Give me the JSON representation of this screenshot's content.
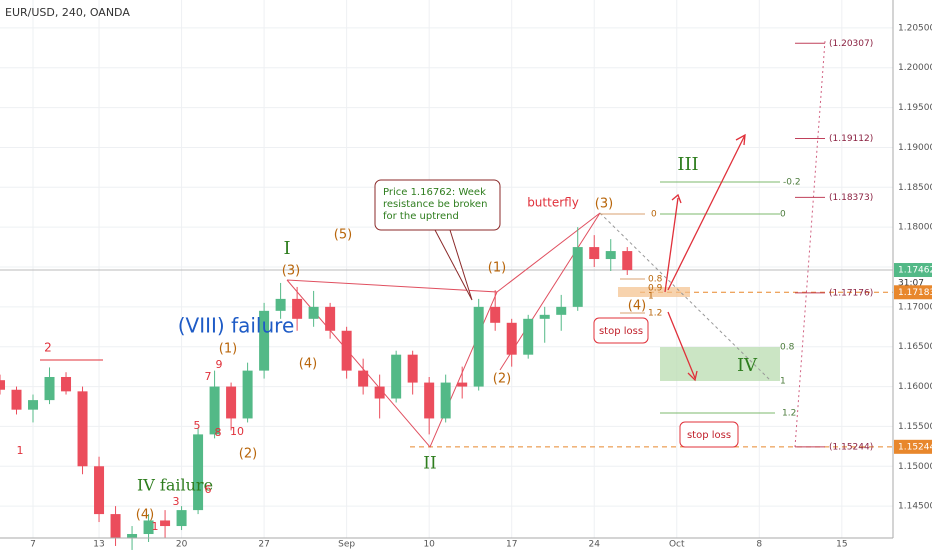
{
  "chart_data": {
    "type": "candlestick",
    "title": "EUR/USD, 240, OANDA",
    "x": [
      -2,
      -1,
      0,
      1,
      2,
      3,
      4,
      5,
      6,
      7,
      8,
      9,
      10,
      11,
      12,
      13,
      14,
      15,
      16,
      17,
      18,
      19,
      20,
      21,
      22,
      23,
      24,
      25,
      26,
      27,
      28,
      29,
      30,
      31,
      32,
      33,
      34,
      35,
      36
    ],
    "open": [
      1.1608,
      1.1596,
      1.1571,
      1.1583,
      1.1612,
      1.1594,
      1.15,
      1.144,
      1.141,
      1.1415,
      1.1432,
      1.1425,
      1.1445,
      1.154,
      1.16,
      1.156,
      1.162,
      1.1695,
      1.171,
      1.1685,
      1.17,
      1.167,
      1.162,
      1.16,
      1.1585,
      1.164,
      1.1605,
      1.156,
      1.1605,
      1.16,
      1.17,
      1.168,
      1.164,
      1.1685,
      1.169,
      1.17,
      1.1775,
      1.176,
      1.177
    ],
    "high": [
      1.1615,
      1.16,
      1.159,
      1.1624,
      1.1618,
      1.16,
      1.1512,
      1.145,
      1.1425,
      1.144,
      1.1445,
      1.145,
      1.1548,
      1.162,
      1.1605,
      1.163,
      1.1705,
      1.173,
      1.1725,
      1.172,
      1.1705,
      1.1675,
      1.1635,
      1.1615,
      1.1645,
      1.1645,
      1.1612,
      1.1615,
      1.1625,
      1.171,
      1.1721,
      1.1685,
      1.169,
      1.17,
      1.1715,
      1.18,
      1.179,
      1.1785,
      1.1775
    ],
    "low": [
      1.159,
      1.1565,
      1.1555,
      1.1578,
      1.159,
      1.149,
      1.143,
      1.14,
      1.1395,
      1.1405,
      1.141,
      1.142,
      1.144,
      1.1535,
      1.1545,
      1.1555,
      1.161,
      1.1685,
      1.167,
      1.1675,
      1.166,
      1.161,
      1.159,
      1.156,
      1.158,
      1.159,
      1.154,
      1.1555,
      1.1585,
      1.1595,
      1.167,
      1.1625,
      1.1635,
      1.1655,
      1.167,
      1.1695,
      1.175,
      1.1745,
      1.174
    ],
    "close": [
      1.1596,
      1.1571,
      1.1583,
      1.1612,
      1.1594,
      1.15,
      1.144,
      1.141,
      1.1415,
      1.1432,
      1.1425,
      1.1445,
      1.154,
      1.16,
      1.156,
      1.162,
      1.1695,
      1.171,
      1.1685,
      1.17,
      1.167,
      1.162,
      1.16,
      1.1585,
      1.164,
      1.1605,
      1.156,
      1.1605,
      1.16,
      1.17,
      1.168,
      1.164,
      1.1685,
      1.169,
      1.17,
      1.1775,
      1.176,
      1.177,
      1.17462
    ],
    "up_color": "#53b987",
    "down_color": "#eb4d5c",
    "xlim": [
      -2,
      52.1
    ],
    "ylim": [
      1.141,
      1.2085
    ],
    "xticks": [
      {
        "value": 0,
        "label": "7"
      },
      {
        "value": 4,
        "label": "13"
      },
      {
        "value": 9,
        "label": "20"
      },
      {
        "value": 14,
        "label": "27"
      },
      {
        "value": 19,
        "label": "Sep"
      },
      {
        "value": 24,
        "label": "10"
      },
      {
        "value": 29,
        "label": "17"
      },
      {
        "value": 34,
        "label": "24"
      },
      {
        "value": 39,
        "label": "Oct"
      },
      {
        "value": 44,
        "label": "8"
      },
      {
        "value": 49,
        "label": "15"
      }
    ],
    "yticks": [
      {
        "value": 1.145,
        "label": "1.14500"
      },
      {
        "value": 1.15,
        "label": "1.15000"
      },
      {
        "value": 1.155,
        "label": "1.15500"
      },
      {
        "value": 1.16,
        "label": "1.16000"
      },
      {
        "value": 1.165,
        "label": "1.16500"
      },
      {
        "value": 1.17,
        "label": "1.17000"
      },
      {
        "value": 1.175,
        "label": "1.17500"
      },
      {
        "value": 1.18,
        "label": "1.18000"
      },
      {
        "value": 1.185,
        "label": "1.18500"
      },
      {
        "value": 1.19,
        "label": "1.19000"
      },
      {
        "value": 1.195,
        "label": "1.19500"
      },
      {
        "value": 1.2,
        "label": "1.20000"
      },
      {
        "value": 1.205,
        "label": "1.20500"
      }
    ],
    "price_labels": [
      {
        "value": 1.17462,
        "label": "1.17462",
        "countdown": "31:07",
        "color": "#53b987"
      },
      {
        "value": 1.17183,
        "label": "1.17183",
        "color": "#e8872c"
      },
      {
        "value": 1.15244,
        "label": "1.15244",
        "color": "#e8872c"
      }
    ],
    "levels": [
      {
        "value": 1.20307,
        "label": "(1.20307)"
      },
      {
        "value": 1.19112,
        "label": "(1.19112)"
      },
      {
        "value": 1.18373,
        "label": "(1.18373)"
      },
      {
        "value": 1.17176,
        "label": "(1.17176)"
      },
      {
        "value": 1.15244,
        "label": "(1.15244)"
      }
    ],
    "waves": [
      {
        "text": "2",
        "color": "#e0303a"
      },
      {
        "text": "1",
        "color": "#e0303a"
      },
      {
        "text": "(4)",
        "color": "#b8650a"
      },
      {
        "text": "1",
        "color": "#e0303a"
      },
      {
        "text": "IV failure",
        "color": "#2e7d1e"
      },
      {
        "text": "3",
        "color": "#e0303a"
      },
      {
        "text": "6",
        "color": "#e0303a"
      },
      {
        "text": "(VIII) failure",
        "color": "#1e5bc6"
      },
      {
        "text": "(1)",
        "color": "#b8650a"
      },
      {
        "text": "9",
        "color": "#e0303a"
      },
      {
        "text": "7",
        "color": "#e0303a"
      },
      {
        "text": "5",
        "color": "#e0303a"
      },
      {
        "text": "8",
        "color": "#e0303a"
      },
      {
        "text": "10",
        "color": "#e0303a"
      },
      {
        "text": "(2)",
        "color": "#b8650a"
      },
      {
        "text": "I",
        "color": "#2e7d1e"
      },
      {
        "text": "(3)",
        "color": "#b8650a"
      },
      {
        "text": "(5)",
        "color": "#b8650a"
      },
      {
        "text": "(4)",
        "color": "#b8650a"
      },
      {
        "text": "II",
        "color": "#2e7d1e"
      },
      {
        "text": "(1)",
        "color": "#b8650a"
      },
      {
        "text": "(2)",
        "color": "#b8650a"
      },
      {
        "text": "(3)",
        "color": "#b8650a"
      },
      {
        "text": "(4)",
        "color": "#b8650a"
      },
      {
        "text": "III",
        "color": "#2e7d1e"
      },
      {
        "text": "IV",
        "color": "#2e7d1e"
      },
      {
        "text": "butterfly",
        "color": "#e0303a"
      }
    ],
    "fib_labels": [
      0,
      0.8,
      0.9,
      1,
      1.2,
      -0.2,
      0,
      0.8,
      1,
      1.2
    ],
    "callout": [
      "Price 1.16762: Week",
      "resistance be broken",
      "for the uptrend"
    ],
    "stop_loss": [
      "stop loss",
      "stop loss"
    ]
  }
}
